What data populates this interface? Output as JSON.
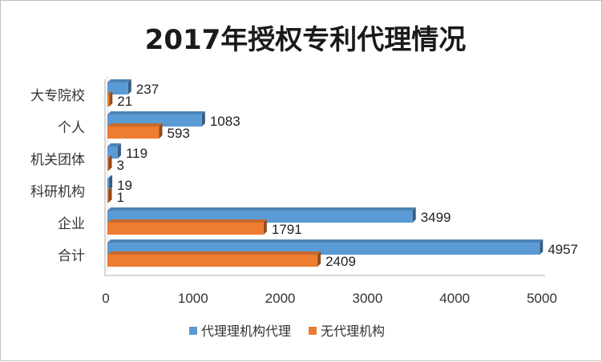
{
  "chart_data": {
    "type": "bar",
    "orientation": "horizontal",
    "title": "2017年授权专利代理情况",
    "categories": [
      "大专院校",
      "个人",
      "机关团体",
      "科研机构",
      "企业",
      "合计"
    ],
    "series": [
      {
        "name": "代理理机构代理",
        "color": "#5b9bd5",
        "values": [
          237,
          1083,
          119,
          19,
          3499,
          4957
        ]
      },
      {
        "name": "无代理机构",
        "color": "#ed7d31",
        "values": [
          21,
          593,
          3,
          1,
          1791,
          2409
        ]
      }
    ],
    "xlim": [
      0,
      5000
    ],
    "xticks": [
      0,
      1000,
      2000,
      3000,
      4000,
      5000
    ],
    "legend": "bottom",
    "grid": false
  }
}
